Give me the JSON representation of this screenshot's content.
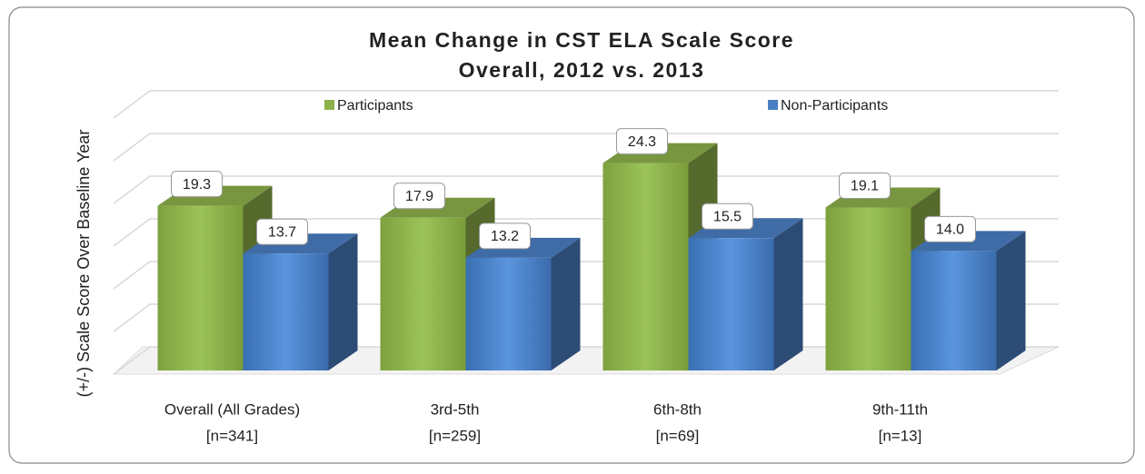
{
  "chart_data": {
    "type": "bar3d",
    "title": [
      "Mean Change in CST ELA Scale Score",
      "Overall, 2012 vs. 2013"
    ],
    "ylabel": "(+/-) Scale Score Over Baseline Year",
    "categories": [
      [
        "Overall (All Grades)",
        "[n=341]"
      ],
      [
        "3rd-5th",
        "[n=259]"
      ],
      [
        "6th-8th",
        "[n=69]"
      ],
      [
        "9th-11th",
        "[n=13]"
      ]
    ],
    "series": [
      {
        "name": "Participants",
        "color": "#8db04a",
        "values": [
          19.3,
          17.9,
          24.3,
          19.1
        ],
        "value_labels": [
          "19.3",
          "17.9",
          "24.3",
          "19.1"
        ]
      },
      {
        "name": "Non-Participants",
        "color": "#4a7fc4",
        "values": [
          13.7,
          13.2,
          15.5,
          14.0
        ],
        "value_labels": [
          "13.7",
          "13.2",
          "15.5",
          "14.0"
        ]
      }
    ],
    "ylim": [
      0,
      30
    ],
    "yticks": [
      0,
      5,
      10,
      15,
      20,
      25,
      30
    ],
    "grid": true,
    "legend": "top"
  }
}
